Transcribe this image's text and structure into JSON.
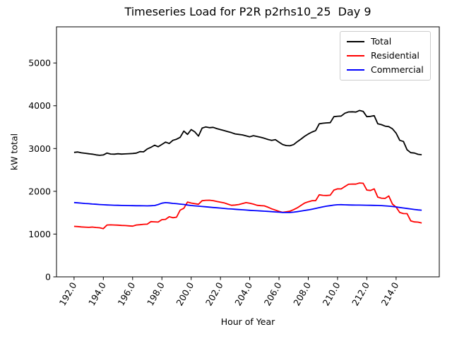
{
  "chart_data": {
    "type": "line",
    "title": "Timeseries Load for P2R p2rhs10_25  Day 9",
    "xlabel": "Hour of Year",
    "ylabel": "kW total",
    "xlim": [
      190.8,
      216.95
    ],
    "ylim": [
      0,
      5845
    ],
    "xticks": [
      192,
      194,
      196,
      198,
      200,
      202,
      204,
      206,
      208,
      210,
      212,
      214
    ],
    "xtick_labels": [
      "192.0",
      "194.0",
      "196.0",
      "198.0",
      "200.0",
      "202.0",
      "204.0",
      "206.0",
      "208.0",
      "210.0",
      "212.0",
      "214.0"
    ],
    "yticks": [
      0,
      1000,
      2000,
      3000,
      4000,
      5000
    ],
    "ytick_labels": [
      "0",
      "1000",
      "2000",
      "3000",
      "4000",
      "5000"
    ],
    "grid": false,
    "legend_position": "upper right",
    "x": [
      192.0,
      192.25,
      192.5,
      192.75,
      193.0,
      193.25,
      193.5,
      193.75,
      194.0,
      194.25,
      194.5,
      194.75,
      195.0,
      195.25,
      195.5,
      195.75,
      196.0,
      196.25,
      196.5,
      196.75,
      197.0,
      197.25,
      197.5,
      197.75,
      198.0,
      198.25,
      198.5,
      198.75,
      199.0,
      199.25,
      199.5,
      199.75,
      200.0,
      200.25,
      200.5,
      200.75,
      201.0,
      201.25,
      201.5,
      201.75,
      202.0,
      202.25,
      202.5,
      202.75,
      203.0,
      203.25,
      203.5,
      203.75,
      204.0,
      204.25,
      204.5,
      204.75,
      205.0,
      205.25,
      205.5,
      205.75,
      206.0,
      206.25,
      206.5,
      206.75,
      207.0,
      207.25,
      207.5,
      207.75,
      208.0,
      208.25,
      208.5,
      208.75,
      209.0,
      209.25,
      209.5,
      209.75,
      210.0,
      210.25,
      210.5,
      210.75,
      211.0,
      211.25,
      211.5,
      211.75,
      212.0,
      212.25,
      212.5,
      212.75,
      213.0,
      213.25,
      213.5,
      213.75,
      214.0,
      214.25,
      214.5,
      214.75,
      215.0,
      215.25,
      215.5,
      215.75
    ],
    "series": [
      {
        "name": "Total",
        "color": "#000000",
        "values": [
          2910,
          2920,
          2900,
          2890,
          2878,
          2868,
          2852,
          2842,
          2850,
          2895,
          2872,
          2868,
          2878,
          2870,
          2874,
          2880,
          2884,
          2892,
          2928,
          2922,
          2990,
          3028,
          3078,
          3042,
          3096,
          3150,
          3118,
          3192,
          3218,
          3262,
          3408,
          3330,
          3442,
          3388,
          3290,
          3478,
          3505,
          3488,
          3495,
          3465,
          3442,
          3420,
          3395,
          3372,
          3342,
          3330,
          3318,
          3295,
          3275,
          3300,
          3280,
          3262,
          3240,
          3212,
          3190,
          3208,
          3150,
          3095,
          3070,
          3065,
          3092,
          3160,
          3220,
          3285,
          3340,
          3385,
          3420,
          3578,
          3592,
          3600,
          3605,
          3745,
          3755,
          3760,
          3825,
          3855,
          3858,
          3852,
          3890,
          3868,
          3745,
          3752,
          3768,
          3580,
          3558,
          3524,
          3512,
          3460,
          3358,
          3192,
          3165,
          2970,
          2902,
          2895,
          2865,
          2855
        ]
      },
      {
        "name": "Residential",
        "color": "#ff0000",
        "values": [
          1180,
          1175,
          1168,
          1162,
          1158,
          1164,
          1154,
          1148,
          1128,
          1212,
          1215,
          1212,
          1208,
          1202,
          1198,
          1192,
          1186,
          1212,
          1218,
          1228,
          1232,
          1292,
          1286,
          1282,
          1338,
          1344,
          1405,
          1382,
          1396,
          1560,
          1604,
          1748,
          1726,
          1710,
          1698,
          1780,
          1790,
          1792,
          1782,
          1762,
          1745,
          1730,
          1700,
          1672,
          1680,
          1690,
          1712,
          1735,
          1720,
          1700,
          1672,
          1665,
          1660,
          1628,
          1590,
          1560,
          1532,
          1508,
          1520,
          1535,
          1572,
          1615,
          1670,
          1725,
          1755,
          1780,
          1782,
          1918,
          1905,
          1902,
          1908,
          2030,
          2058,
          2055,
          2112,
          2165,
          2170,
          2168,
          2195,
          2188,
          2030,
          2020,
          2058,
          1864,
          1840,
          1835,
          1890,
          1700,
          1630,
          1505,
          1480,
          1478,
          1310,
          1285,
          1280,
          1258
        ]
      },
      {
        "name": "Commercial",
        "color": "#0000ff",
        "values": [
          1737,
          1730,
          1723,
          1716,
          1710,
          1703,
          1697,
          1691,
          1686,
          1681,
          1678,
          1675,
          1672,
          1670,
          1668,
          1666,
          1665,
          1663,
          1662,
          1661,
          1660,
          1662,
          1668,
          1690,
          1722,
          1735,
          1728,
          1718,
          1710,
          1700,
          1692,
          1680,
          1668,
          1660,
          1652,
          1645,
          1638,
          1630,
          1622,
          1615,
          1608,
          1600,
          1592,
          1586,
          1580,
          1574,
          1568,
          1562,
          1556,
          1551,
          1546,
          1541,
          1536,
          1530,
          1524,
          1518,
          1512,
          1506,
          1504,
          1506,
          1512,
          1524,
          1538,
          1552,
          1566,
          1582,
          1600,
          1618,
          1636,
          1652,
          1665,
          1678,
          1686,
          1688,
          1684,
          1681,
          1679,
          1678,
          1677,
          1676,
          1675,
          1673,
          1671,
          1669,
          1666,
          1660,
          1652,
          1644,
          1634,
          1622,
          1610,
          1598,
          1586,
          1576,
          1566,
          1558
        ]
      }
    ]
  }
}
